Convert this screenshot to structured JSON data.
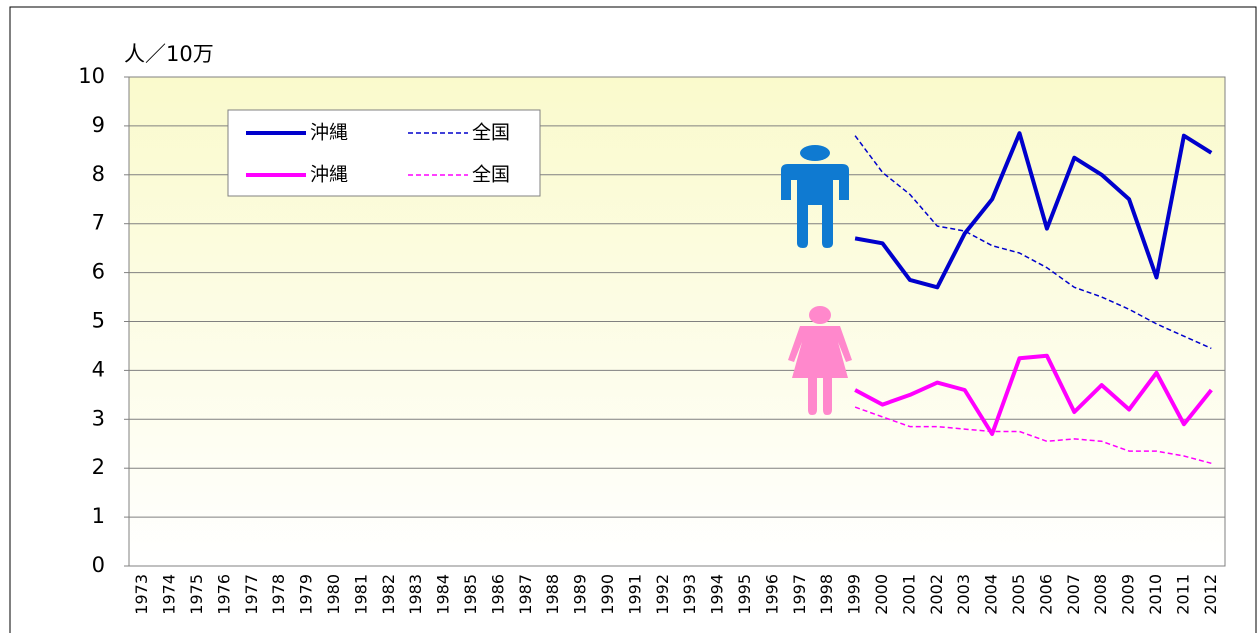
{
  "chart_data": {
    "type": "line",
    "y_label": "人／10万",
    "categories": [
      "1973",
      "1974",
      "1975",
      "1976",
      "1977",
      "1978",
      "1979",
      "1980",
      "1981",
      "1982",
      "1983",
      "1984",
      "1985",
      "1986",
      "1987",
      "1988",
      "1989",
      "1990",
      "1991",
      "1992",
      "1993",
      "1994",
      "1995",
      "1996",
      "1997",
      "1998",
      "1999",
      "2000",
      "2001",
      "2002",
      "2003",
      "2004",
      "2005",
      "2006",
      "2007",
      "2008",
      "2009",
      "2010",
      "2011",
      "2012"
    ],
    "series": [
      {
        "name": "沖縄",
        "color": "#0000cc",
        "dashed": false,
        "values": [
          null,
          null,
          null,
          null,
          null,
          null,
          null,
          null,
          null,
          null,
          null,
          null,
          null,
          null,
          null,
          null,
          null,
          null,
          null,
          null,
          null,
          null,
          null,
          null,
          null,
          null,
          6.7,
          6.6,
          5.85,
          5.7,
          6.8,
          7.5,
          8.85,
          6.9,
          8.35,
          8.0,
          7.5,
          5.9,
          8.8,
          8.45
        ]
      },
      {
        "name": "全国",
        "color": "#0000cc",
        "dashed": true,
        "values": [
          null,
          null,
          null,
          null,
          null,
          null,
          null,
          null,
          null,
          null,
          null,
          null,
          null,
          null,
          null,
          null,
          null,
          null,
          null,
          null,
          null,
          null,
          null,
          null,
          null,
          null,
          8.8,
          8.05,
          7.6,
          6.95,
          6.85,
          6.55,
          6.4,
          6.1,
          5.7,
          5.5,
          5.25,
          4.95,
          4.7,
          4.45
        ]
      },
      {
        "name": "沖縄",
        "color": "#ff00ff",
        "dashed": false,
        "values": [
          null,
          null,
          null,
          null,
          null,
          null,
          null,
          null,
          null,
          null,
          null,
          null,
          null,
          null,
          null,
          null,
          null,
          null,
          null,
          null,
          null,
          null,
          null,
          null,
          null,
          null,
          3.6,
          3.3,
          3.5,
          3.75,
          3.6,
          2.7,
          4.25,
          4.3,
          3.15,
          3.7,
          3.2,
          3.95,
          2.9,
          3.6
        ]
      },
      {
        "name": "全国",
        "color": "#ff00ff",
        "dashed": true,
        "values": [
          null,
          null,
          null,
          null,
          null,
          null,
          null,
          null,
          null,
          null,
          null,
          null,
          null,
          null,
          null,
          null,
          null,
          null,
          null,
          null,
          null,
          null,
          null,
          null,
          null,
          null,
          3.25,
          3.05,
          2.85,
          2.85,
          2.8,
          2.75,
          2.75,
          2.55,
          2.6,
          2.55,
          2.35,
          2.35,
          2.25,
          2.1
        ]
      }
    ],
    "ylim": [
      0,
      10
    ],
    "yticks": [
      0,
      1,
      2,
      3,
      4,
      5,
      6,
      7,
      8,
      9,
      10
    ],
    "grid": true
  }
}
